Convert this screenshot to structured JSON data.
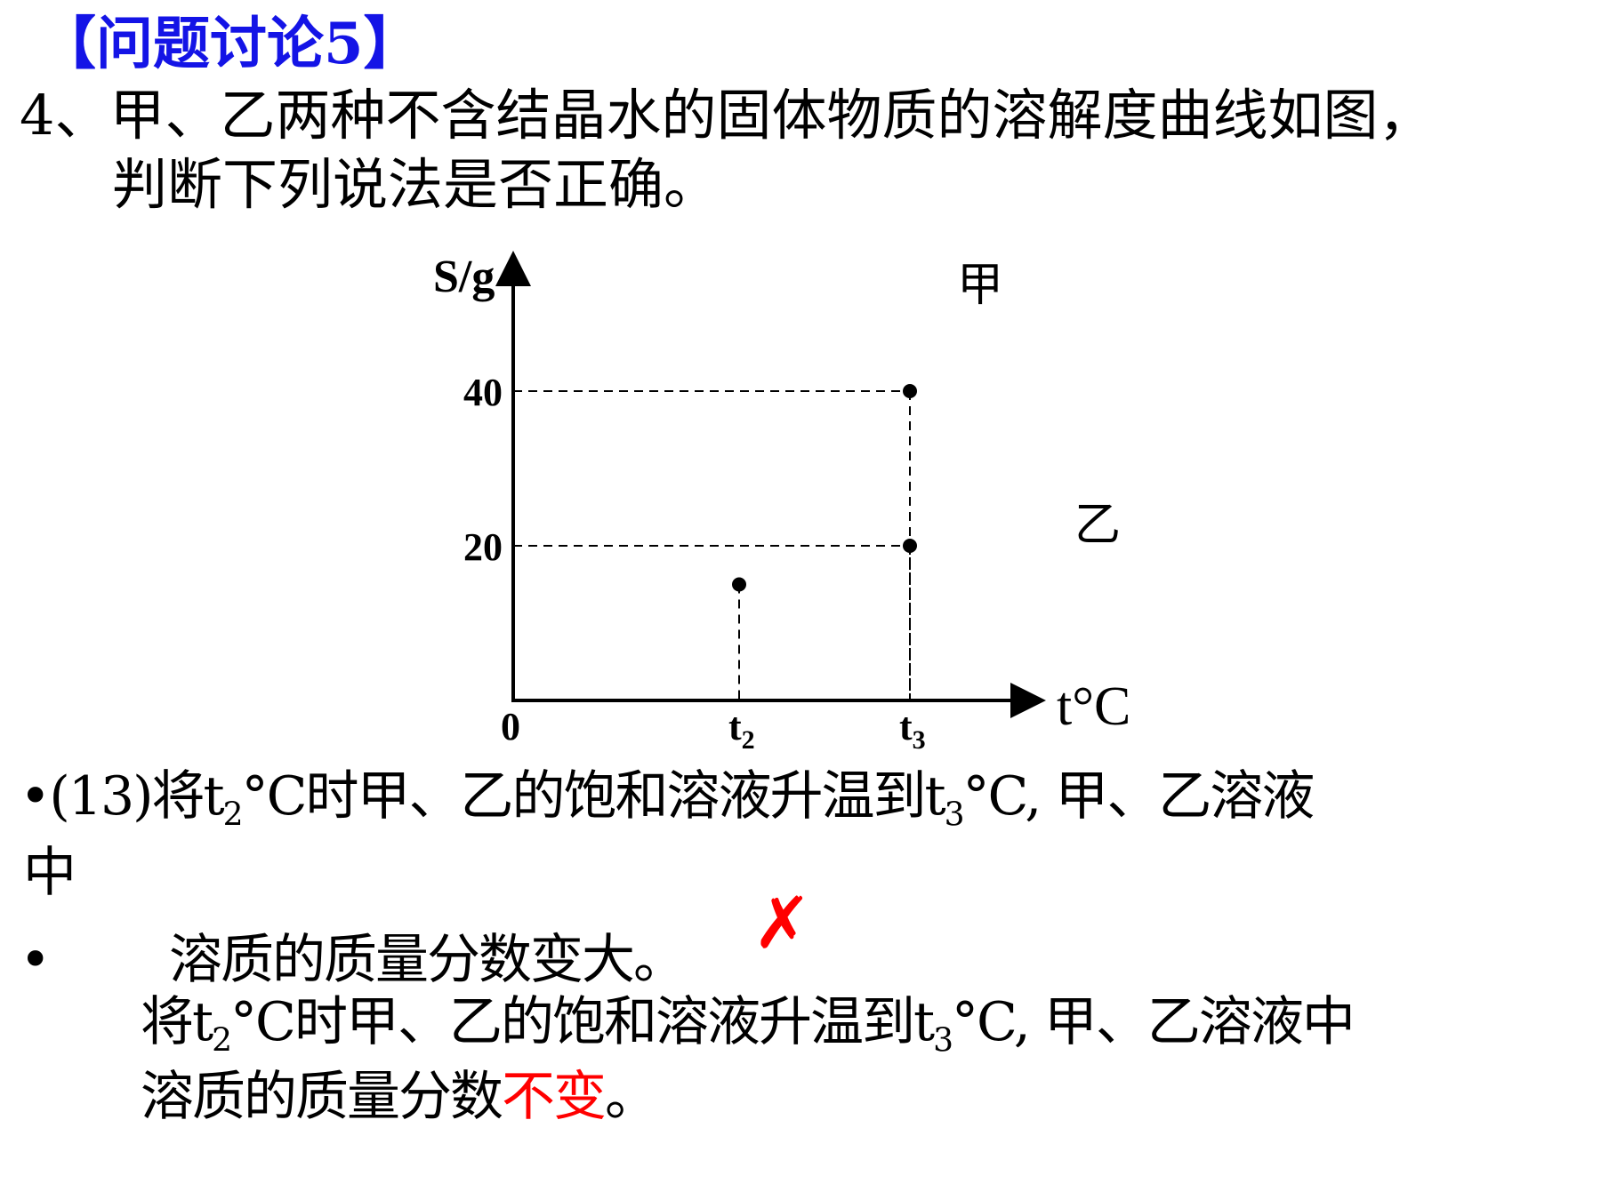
{
  "title": "【问题讨论5】",
  "question": {
    "line1": "4、甲、乙两种不含结晶水的固体物质的溶解度曲线如图，",
    "line2": "判断下列说法是否正确。"
  },
  "chart_data": {
    "type": "scatter",
    "ylabel": "S/g",
    "xlabel": "t°C",
    "origin_label": "0",
    "y_ticks": [
      20,
      40
    ],
    "x_ticks": [
      {
        "label": "t",
        "sub": "2"
      },
      {
        "label": "t",
        "sub": "3"
      }
    ],
    "series_labels": [
      "甲",
      "乙"
    ],
    "points": [
      {
        "x": "t2",
        "y": 15
      },
      {
        "x": "t3",
        "y": 40
      },
      {
        "x": "t3",
        "y": 20
      }
    ],
    "grid": false
  },
  "statement": {
    "bullet": "•",
    "prefix": "(13)将t",
    "sub1": "2",
    "mid": "°C时甲、乙的饱和溶液升温到t",
    "sub2": "3",
    "suffix": "°C, 甲、乙溶液",
    "wrap": "中",
    "bullet2": "•",
    "line3": "溶质的质量分数变大。",
    "mark": "✗"
  },
  "answer": {
    "prefix": "将t",
    "sub1": "2",
    "mid": "°C时甲、乙的饱和溶液升温到t",
    "sub2": "3",
    "suffix": "°C, 甲、乙溶液中",
    "line2_start": "溶质的质量分数",
    "line2_highlight": "不变",
    "line2_end": "。"
  },
  "colors": {
    "title": "#1414e6",
    "highlight": "#ff0000",
    "mark": "#ff0000"
  }
}
